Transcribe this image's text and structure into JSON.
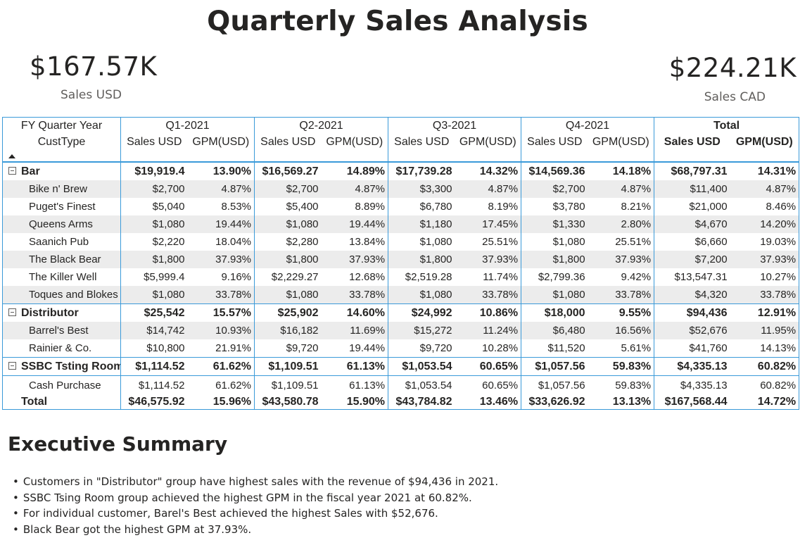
{
  "title": "Quarterly Sales Analysis",
  "kpis": {
    "usd": {
      "value": "$167.57K",
      "label": "Sales USD"
    },
    "cad": {
      "value": "$224.21K",
      "label": "Sales CAD"
    }
  },
  "matrix": {
    "row_header_top": "FY Quarter Year",
    "row_header_bottom": "CustType",
    "quarters": [
      "Q1-2021",
      "Q2-2021",
      "Q3-2021",
      "Q4-2021"
    ],
    "total_label": "Total",
    "col_sales": "Sales USD",
    "col_gpm": "GPM(USD)",
    "groups": [
      {
        "name": "Bar",
        "values": [
          "$19,919.4",
          "13.90%",
          "$16,569.27",
          "14.89%",
          "$17,739.28",
          "14.32%",
          "$14,569.36",
          "14.18%",
          "$68,797.31",
          "14.31%"
        ],
        "children": [
          {
            "name": "Bike n' Brew",
            "values": [
              "$2,700",
              "4.87%",
              "$2,700",
              "4.87%",
              "$3,300",
              "4.87%",
              "$2,700",
              "4.87%",
              "$11,400",
              "4.87%"
            ]
          },
          {
            "name": "Puget's Finest",
            "values": [
              "$5,040",
              "8.53%",
              "$5,400",
              "8.89%",
              "$6,780",
              "8.19%",
              "$3,780",
              "8.21%",
              "$21,000",
              "8.46%"
            ]
          },
          {
            "name": "Queens Arms",
            "values": [
              "$1,080",
              "19.44%",
              "$1,080",
              "19.44%",
              "$1,180",
              "17.45%",
              "$1,330",
              "2.80%",
              "$4,670",
              "14.20%"
            ]
          },
          {
            "name": "Saanich Pub",
            "values": [
              "$2,220",
              "18.04%",
              "$2,280",
              "13.84%",
              "$1,080",
              "25.51%",
              "$1,080",
              "25.51%",
              "$6,660",
              "19.03%"
            ]
          },
          {
            "name": "The Black Bear",
            "values": [
              "$1,800",
              "37.93%",
              "$1,800",
              "37.93%",
              "$1,800",
              "37.93%",
              "$1,800",
              "37.93%",
              "$7,200",
              "37.93%"
            ]
          },
          {
            "name": "The Killer Well",
            "values": [
              "$5,999.4",
              "9.16%",
              "$2,229.27",
              "12.68%",
              "$2,519.28",
              "11.74%",
              "$2,799.36",
              "9.42%",
              "$13,547.31",
              "10.27%"
            ]
          },
          {
            "name": "Toques and Blokes",
            "values": [
              "$1,080",
              "33.78%",
              "$1,080",
              "33.78%",
              "$1,080",
              "33.78%",
              "$1,080",
              "33.78%",
              "$4,320",
              "33.78%"
            ]
          }
        ]
      },
      {
        "name": "Distributor",
        "values": [
          "$25,542",
          "15.57%",
          "$25,902",
          "14.60%",
          "$24,992",
          "10.86%",
          "$18,000",
          "9.55%",
          "$94,436",
          "12.91%"
        ],
        "children": [
          {
            "name": "Barrel's Best",
            "values": [
              "$14,742",
              "10.93%",
              "$16,182",
              "11.69%",
              "$15,272",
              "11.24%",
              "$6,480",
              "16.56%",
              "$52,676",
              "11.95%"
            ]
          },
          {
            "name": "Rainier & Co.",
            "values": [
              "$10,800",
              "21.91%",
              "$9,720",
              "19.44%",
              "$9,720",
              "10.28%",
              "$11,520",
              "5.61%",
              "$41,760",
              "14.13%"
            ]
          }
        ]
      },
      {
        "name": "SSBC Tsting Room",
        "values": [
          "$1,114.52",
          "61.62%",
          "$1,109.51",
          "61.13%",
          "$1,053.54",
          "60.65%",
          "$1,057.56",
          "59.83%",
          "$4,335.13",
          "60.82%"
        ],
        "children": [
          {
            "name": "Cash Purchase",
            "values": [
              "$1,114.52",
              "61.62%",
              "$1,109.51",
              "61.13%",
              "$1,053.54",
              "60.65%",
              "$1,057.56",
              "59.83%",
              "$4,335.13",
              "60.82%"
            ]
          }
        ]
      }
    ],
    "total": {
      "name": "Total",
      "values": [
        "$46,575.92",
        "15.96%",
        "$43,580.78",
        "15.90%",
        "$43,784.82",
        "13.46%",
        "$33,626.92",
        "13.13%",
        "$167,568.44",
        "14.72%"
      ]
    }
  },
  "summary": {
    "title": "Executive Summary",
    "bullets": [
      "Customers in \"Distributor\" group have highest sales with the revenue of $94,436 in 2021.",
      "SSBC Tsing Room group achieved the highest GPM in the fiscal year 2021 at 60.82%.",
      "For individual customer, Barel's Best achieved the highest Sales with $52,676.",
      "Black Bear got the highest GPM at 37.93%."
    ]
  },
  "icons": {
    "expand": "collapse-minus-icon",
    "sort": "sort-ascending-icon"
  },
  "colors": {
    "grid_line": "#3a9ad9",
    "row_shade": "#ececec",
    "text": "#252423"
  }
}
